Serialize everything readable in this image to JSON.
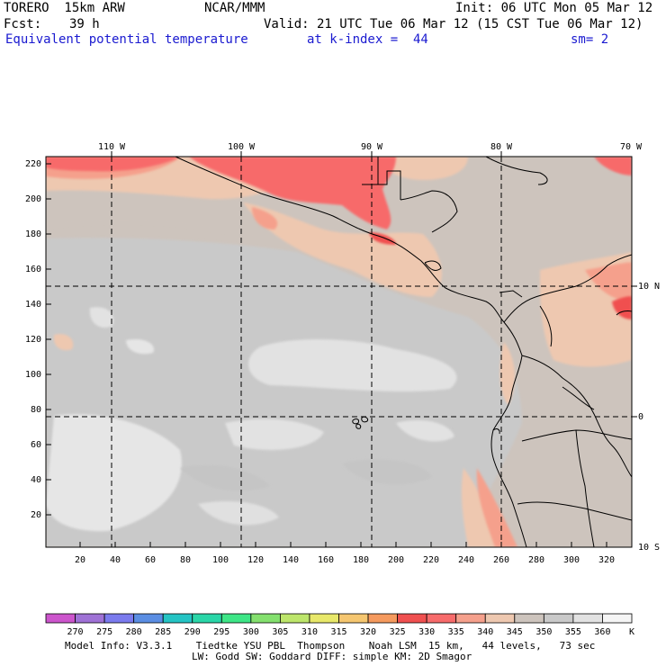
{
  "header": {
    "model": "TORERO  15km ARW",
    "org": "NCAR/MMM",
    "init": "Init: 06 UTC Mon 05 Mar 12",
    "fcst_label": "Fcst:",
    "fcst_value": "39 h",
    "valid": "Valid: 21 UTC Tue 06 Mar 12 (15 CST Tue 06 Mar 12)",
    "field": "Equivalent potential temperature",
    "level": "at k-index =  44",
    "smooth": "sm= 2"
  },
  "map": {
    "lon_labels": [
      "110 W",
      "100 W",
      "90 W",
      "80 W",
      "70 W"
    ],
    "lat_labels": [
      "10 N",
      "0",
      "10 S"
    ],
    "y_ticks": [
      "220",
      "200",
      "180",
      "160",
      "140",
      "120",
      "100",
      "80",
      "60",
      "40",
      "20"
    ],
    "x_ticks": [
      "20",
      "40",
      "60",
      "80",
      "100",
      "120",
      "140",
      "160",
      "180",
      "200",
      "220",
      "240",
      "260",
      "280",
      "300",
      "320"
    ]
  },
  "colorbar": {
    "labels": [
      "270",
      "275",
      "280",
      "285",
      "290",
      "295",
      "300",
      "305",
      "310",
      "315",
      "320",
      "325",
      "330",
      "335",
      "340",
      "345",
      "350",
      "355",
      "360"
    ],
    "unit": "K",
    "colors": [
      "#cc55cc",
      "#9f72d6",
      "#7b7bee",
      "#5b8ee3",
      "#25c4c4",
      "#2ad6a8",
      "#3ee687",
      "#84e06e",
      "#bde66b",
      "#e8e86a",
      "#f5c670",
      "#f59a5e",
      "#f05050",
      "#f76b6b",
      "#f5a08c",
      "#eec8b0",
      "#cdc4bd",
      "#c9c9c9",
      "#e2e2e2",
      "#f5f5f5"
    ]
  },
  "footer": {
    "line1": "Model Info: V3.3.1    Tiedtke YSU PBL  Thompson    Noah LSM  15 km,   44 levels,   73 sec",
    "line2": "LW: Godd SW: Goddard DIFF: simple KM: 2D Smagor"
  }
}
